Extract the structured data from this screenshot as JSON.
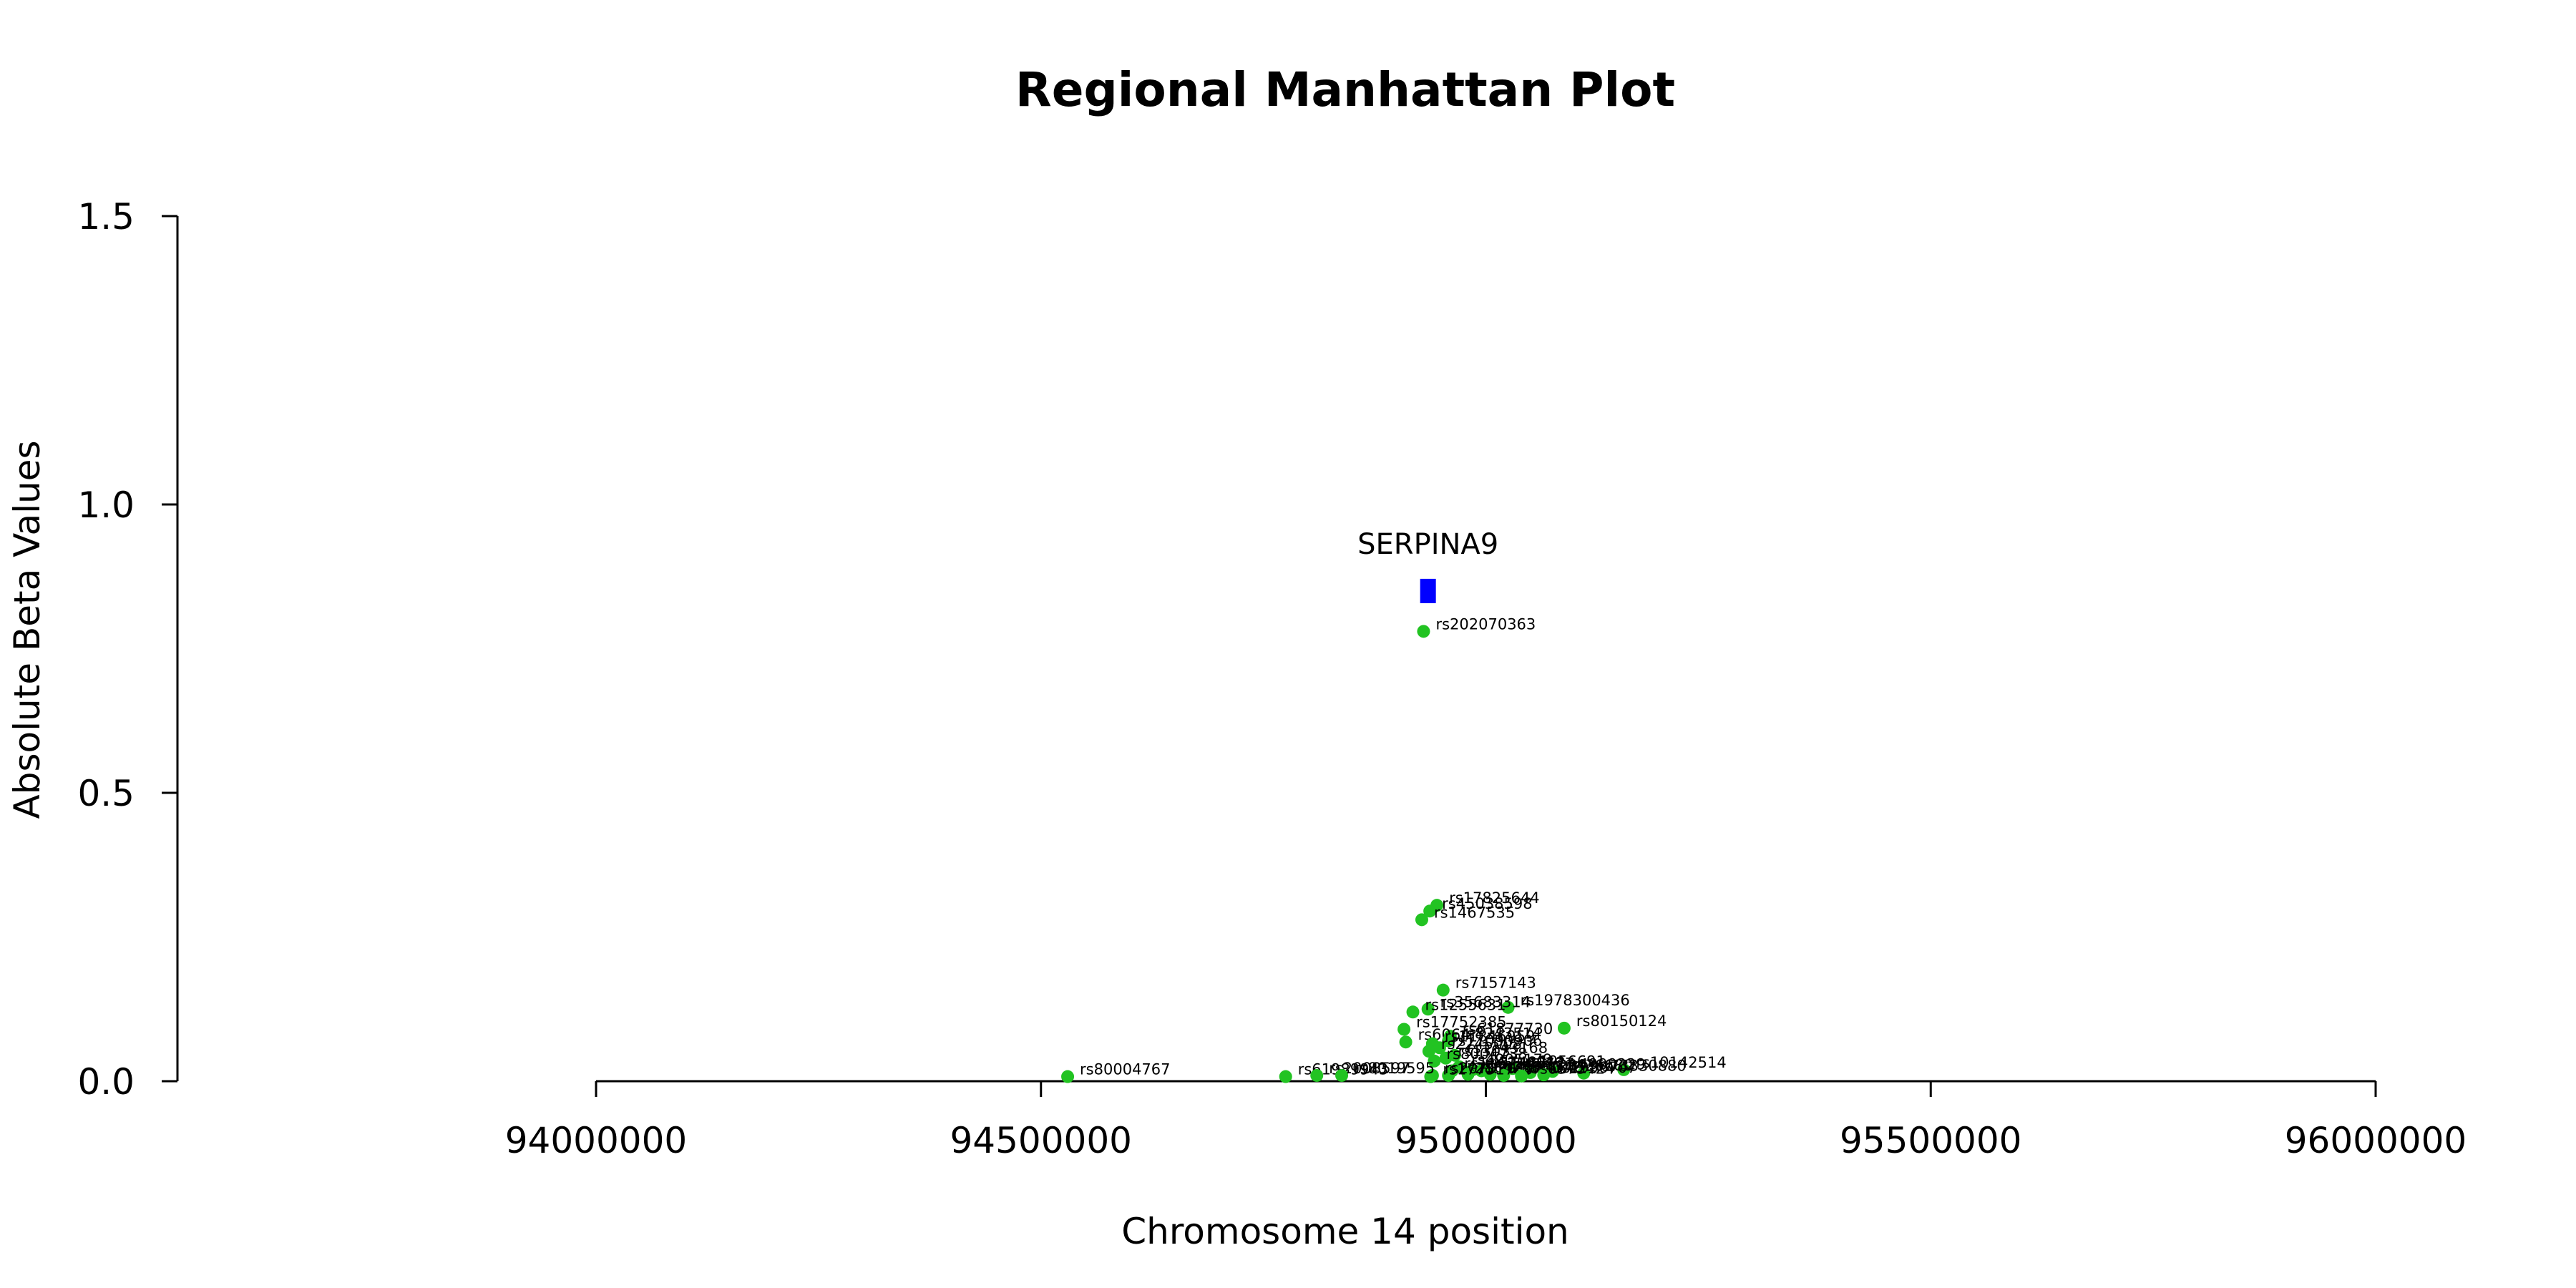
{
  "chart_data": {
    "type": "scatter",
    "title": "Regional Manhattan Plot",
    "xlabel": "Chromosome 14 position",
    "ylabel": "Absolute Beta Values",
    "xlim": [
      94000000,
      96000000
    ],
    "ylim": [
      0,
      1.5
    ],
    "xticks": [
      94000000,
      94500000,
      95000000,
      95500000,
      96000000
    ],
    "xtick_labels": [
      "94000000",
      "94500000",
      "95000000",
      "95500000",
      "96000000"
    ],
    "yticks": [
      0,
      0.5,
      1.0,
      1.5
    ],
    "ytick_labels": [
      "0.0",
      "0.5",
      "1.0",
      "1.5"
    ],
    "grid": false,
    "point_color": "#22c322",
    "gene_color": "#0000ff",
    "gene": {
      "name": "SERPINA9",
      "x": 94935000,
      "y": 0.85
    },
    "points": [
      {
        "label": "rs202070363",
        "x": 94930000,
        "y": 0.78
      },
      {
        "label": "rs17825644",
        "x": 94945000,
        "y": 0.305
      },
      {
        "label": "rs45038598",
        "x": 94937000,
        "y": 0.295
      },
      {
        "label": "rs1467535",
        "x": 94928000,
        "y": 0.28
      },
      {
        "label": "rs7157143",
        "x": 94952000,
        "y": 0.158
      },
      {
        "label": "rs1978300436",
        "x": 95025000,
        "y": 0.128
      },
      {
        "label": "rs35683314",
        "x": 94935000,
        "y": 0.125
      },
      {
        "label": "rs1255631",
        "x": 94918000,
        "y": 0.12
      },
      {
        "label": "rs80150124",
        "x": 95088000,
        "y": 0.092
      },
      {
        "label": "rs17752385",
        "x": 94908000,
        "y": 0.09
      },
      {
        "label": "rs61877730",
        "x": 94960000,
        "y": 0.078
      },
      {
        "label": "rs6064",
        "x": 94910000,
        "y": 0.068
      },
      {
        "label": "rs8243514",
        "x": 94958000,
        "y": 0.07
      },
      {
        "label": "rs11846959",
        "x": 94940000,
        "y": 0.065
      },
      {
        "label": "rs17090906",
        "x": 94948000,
        "y": 0.058
      },
      {
        "label": "rs2245008",
        "x": 94936000,
        "y": 0.052
      },
      {
        "label": "rs1243168",
        "x": 94965000,
        "y": 0.045
      },
      {
        "label": "rs1303",
        "x": 94955000,
        "y": 0.04
      },
      {
        "label": "rs8004738",
        "x": 94942000,
        "y": 0.035
      },
      {
        "label": "rs10142514",
        "x": 95155000,
        "y": 0.02
      },
      {
        "label": "rs4905179",
        "x": 94970000,
        "y": 0.025
      },
      {
        "label": "rs3748312",
        "x": 94985000,
        "y": 0.02
      },
      {
        "label": "rs1956691",
        "x": 95030000,
        "y": 0.022
      },
      {
        "label": "rs2749527",
        "x": 94995000,
        "y": 0.018
      },
      {
        "label": "rs11628917",
        "x": 94962000,
        "y": 0.018
      },
      {
        "label": "rs4900229",
        "x": 95075000,
        "y": 0.017
      },
      {
        "label": "rs73330880",
        "x": 95110000,
        "y": 0.014
      },
      {
        "label": "rs12436680",
        "x": 95050000,
        "y": 0.015
      },
      {
        "label": "rs1884546",
        "x": 95005000,
        "y": 0.012
      },
      {
        "label": "rs2854254",
        "x": 94958000,
        "y": 0.01
      },
      {
        "label": "rs8022330",
        "x": 94980000,
        "y": 0.012
      },
      {
        "label": "rs2070709",
        "x": 94940000,
        "y": 0.01
      },
      {
        "label": "rs8010121",
        "x": 95020000,
        "y": 0.01
      },
      {
        "label": "rs1956707",
        "x": 95065000,
        "y": 0.011
      },
      {
        "label": "rs17751769",
        "x": 94938000,
        "y": 0.008
      },
      {
        "label": "rs6575424",
        "x": 95040000,
        "y": 0.009
      },
      {
        "label": "rs80004767",
        "x": 94530000,
        "y": 0.008
      },
      {
        "label": "rs61989943",
        "x": 94775000,
        "y": 0.008
      },
      {
        "label": "rs2008597",
        "x": 94810000,
        "y": 0.01
      },
      {
        "label": "rs8019595",
        "x": 94838000,
        "y": 0.01
      }
    ]
  }
}
